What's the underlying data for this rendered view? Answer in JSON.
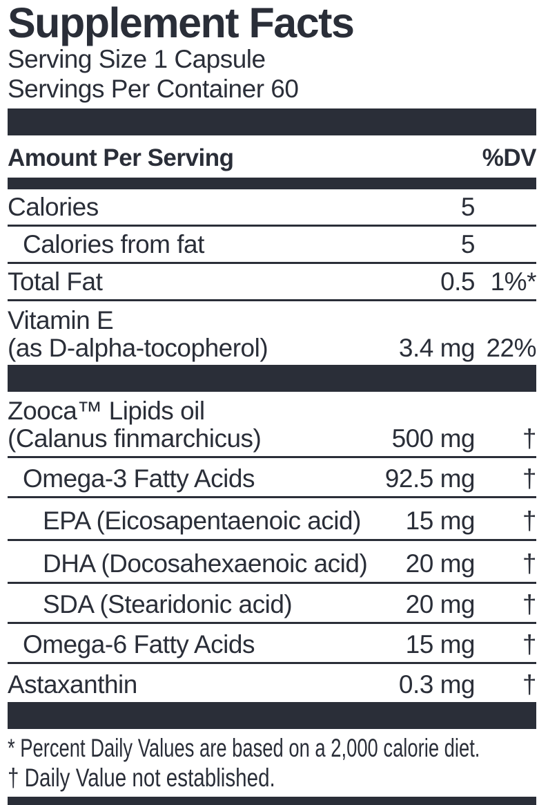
{
  "label": {
    "title": "Supplement Facts",
    "serving_size": "Serving Size 1 Capsule",
    "servings_per_container": "Servings Per Container 60",
    "columns": {
      "amount_header": "Amount Per Serving",
      "dv_header": "%DV"
    },
    "rows": [
      {
        "name": "Calories",
        "amount": "5",
        "dv": ""
      },
      {
        "name": "Calories from fat",
        "amount": "5",
        "dv": ""
      },
      {
        "name": "Total Fat",
        "amount": "0.5",
        "dv": "1%*"
      },
      {
        "name": "Vitamin E",
        "name2": "(as D-alpha-tocopherol)",
        "amount": "3.4 mg",
        "dv": "22%"
      },
      {
        "name": "Zooca™ Lipids oil",
        "name2": "(Calanus finmarchicus)",
        "amount": "500 mg",
        "dv": "†"
      },
      {
        "name": "Omega-3 Fatty Acids",
        "amount": "92.5 mg",
        "dv": "†"
      },
      {
        "name": "EPA (Eicosapentaenoic acid)",
        "amount": "15 mg",
        "dv": "†"
      },
      {
        "name": "DHA (Docosahexaenoic acid)",
        "amount": "20 mg",
        "dv": "†"
      },
      {
        "name": "SDA (Stearidonic acid)",
        "amount": "20 mg",
        "dv": "†"
      },
      {
        "name": "Omega-6 Fatty Acids",
        "amount": "15 mg",
        "dv": "†"
      },
      {
        "name": "Astaxanthin",
        "amount": "0.3 mg",
        "dv": "†"
      }
    ],
    "footnotes": {
      "percent_dv": "* Percent Daily Values are based on a 2,000 calorie diet.",
      "dagger": "† Daily Value not established."
    },
    "colors": {
      "ink": "#2a2e38",
      "background": "#ffffff"
    }
  }
}
